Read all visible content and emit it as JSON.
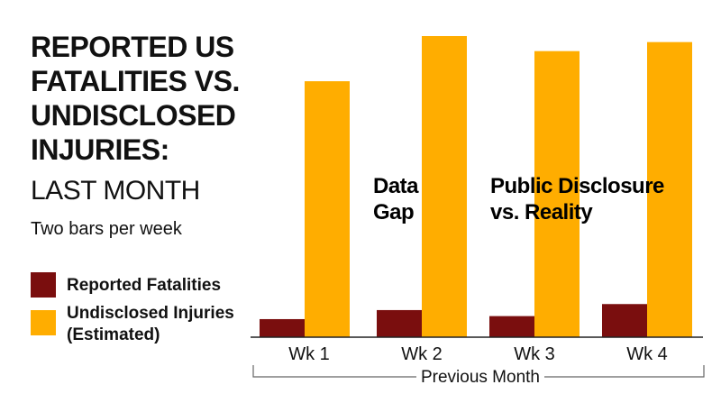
{
  "header": {
    "title": "REPORTED US FATALITIES vs. UNDISCLOSED INJURIES:",
    "subtitle": "LAST MONTH",
    "note": "Two bars per week"
  },
  "legend": [
    {
      "label": "Reported Fatalities",
      "color": "#7a0e0e"
    },
    {
      "label": "Undisclosed Injuries (Estimated)",
      "color": "#ffad00"
    }
  ],
  "chart_data": {
    "type": "bar",
    "title": "REPORTED US FATALITIES vs. UNDISCLOSED INJURIES: LAST MONTH",
    "subtitle": "Two bars per week",
    "categories": [
      "Wk 1",
      "Wk 2",
      "Wk 3",
      "Wk 4"
    ],
    "series": [
      {
        "name": "Reported Fatalities",
        "color": "#7a0e0e",
        "values": [
          6,
          9,
          7,
          11
        ]
      },
      {
        "name": "Undisclosed Injuries (Estimated)",
        "color": "#ffad00",
        "values": [
          85,
          100,
          95,
          98
        ]
      }
    ],
    "xlabel": "Previous Month",
    "ylabel": "",
    "ylim": [
      0,
      100
    ],
    "grid": false,
    "yaxis_visible": false,
    "legend_position": "left",
    "annotations": [
      "Data Gap",
      "Public Disclosure vs. Reality"
    ]
  }
}
